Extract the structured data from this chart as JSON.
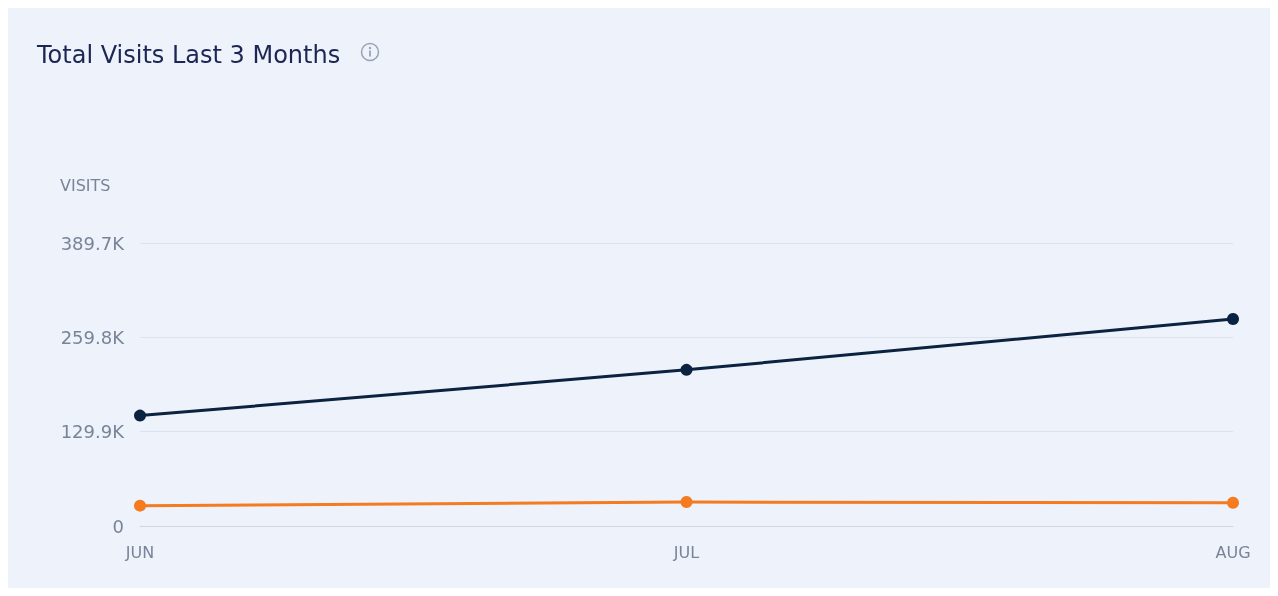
{
  "chart_data": {
    "type": "line",
    "title": "Total Visits Last 3 Months",
    "ylabel": "VISITS",
    "categories": [
      "JUN",
      "JUL",
      "AUG"
    ],
    "series": [
      {
        "color": "#0b2240",
        "values": [
          152000,
          215000,
          285000
        ]
      },
      {
        "color": "#f47b20",
        "values": [
          28000,
          33000,
          32000
        ]
      }
    ],
    "ylim": [
      0,
      389700
    ],
    "yticks": [
      0,
      {
        "value": 129900,
        "label": "129.9K"
      },
      {
        "value": 259800,
        "label": "259.8K"
      },
      {
        "value": 389700,
        "label": "389.7K"
      }
    ],
    "grid": "y",
    "marker": "circle",
    "line_style": "solid"
  }
}
